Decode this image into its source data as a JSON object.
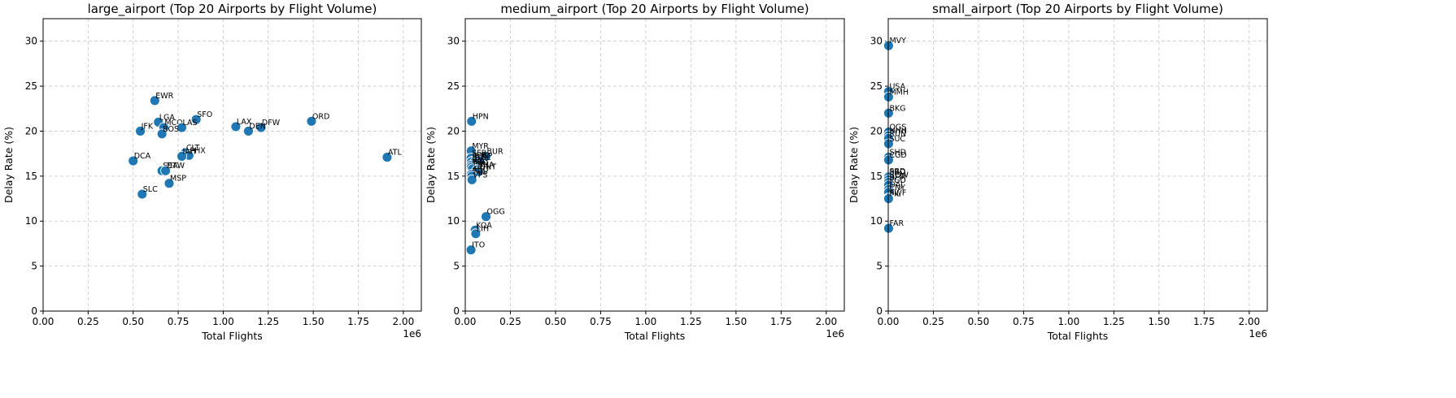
{
  "chart_data": [
    {
      "type": "scatter",
      "title": "large_airport (Top 20 Airports by Flight Volume)",
      "xlabel": "Total Flights",
      "ylabel": "Delay Rate (%)",
      "x_offset_label": "1e6",
      "xlim": [
        0,
        2.1
      ],
      "ylim": [
        0,
        32.5
      ],
      "xticks": [
        "0.00",
        "0.25",
        "0.50",
        "0.75",
        "1.00",
        "1.25",
        "1.50",
        "1.75",
        "2.00"
      ],
      "yticks": [
        "0",
        "5",
        "10",
        "15",
        "20",
        "25",
        "30"
      ],
      "grid": true,
      "points": [
        {
          "label": "EWR",
          "x": 0.62,
          "y": 23.4
        },
        {
          "label": "SFO",
          "x": 0.85,
          "y": 21.3
        },
        {
          "label": "ORD",
          "x": 1.49,
          "y": 21.1
        },
        {
          "label": "LGA",
          "x": 0.64,
          "y": 21.0
        },
        {
          "label": "LAX",
          "x": 1.07,
          "y": 20.5
        },
        {
          "label": "DFW",
          "x": 1.21,
          "y": 20.4
        },
        {
          "label": "MCO",
          "x": 0.67,
          "y": 20.4
        },
        {
          "label": "LAS",
          "x": 0.77,
          "y": 20.4
        },
        {
          "label": "JFK",
          "x": 0.54,
          "y": 20.0
        },
        {
          "label": "DEN",
          "x": 1.14,
          "y": 20.0
        },
        {
          "label": "BOS",
          "x": 0.66,
          "y": 19.7
        },
        {
          "label": "CLT",
          "x": 0.79,
          "y": 17.6
        },
        {
          "label": "PHX",
          "x": 0.81,
          "y": 17.3
        },
        {
          "label": "IAH",
          "x": 0.77,
          "y": 17.2
        },
        {
          "label": "ATL",
          "x": 1.91,
          "y": 17.1
        },
        {
          "label": "DCA",
          "x": 0.5,
          "y": 16.7
        },
        {
          "label": "SEA",
          "x": 0.66,
          "y": 15.6
        },
        {
          "label": "DTW",
          "x": 0.68,
          "y": 15.6
        },
        {
          "label": "MSP",
          "x": 0.7,
          "y": 14.2
        },
        {
          "label": "SLC",
          "x": 0.55,
          "y": 13.0
        }
      ]
    },
    {
      "type": "scatter",
      "title": "medium_airport (Top 20 Airports by Flight Volume)",
      "xlabel": "Total Flights",
      "ylabel": "Delay Rate (%)",
      "x_offset_label": "1e6",
      "xlim": [
        0,
        2.1
      ],
      "ylim": [
        0,
        32.5
      ],
      "xticks": [
        "0.00",
        "0.25",
        "0.50",
        "0.75",
        "1.00",
        "1.25",
        "1.50",
        "1.75",
        "2.00"
      ],
      "yticks": [
        "0",
        "5",
        "10",
        "15",
        "20",
        "25",
        "30"
      ],
      "grid": true,
      "points": [
        {
          "label": "HPN",
          "x": 0.035,
          "y": 21.1
        },
        {
          "label": "MYR",
          "x": 0.033,
          "y": 17.8
        },
        {
          "label": "BUR",
          "x": 0.115,
          "y": 17.2
        },
        {
          "label": "SFB",
          "x": 0.032,
          "y": 17.0
        },
        {
          "label": "PBI",
          "x": 0.045,
          "y": 16.7
        },
        {
          "label": "ISP",
          "x": 0.08,
          "y": 16.7
        },
        {
          "label": "ELP",
          "x": 0.034,
          "y": 16.6
        },
        {
          "label": "BDL",
          "x": 0.05,
          "y": 16.5
        },
        {
          "label": "RIC",
          "x": 0.032,
          "y": 16.2
        },
        {
          "label": "PVD",
          "x": 0.034,
          "y": 16.0
        },
        {
          "label": "PIE",
          "x": 0.04,
          "y": 15.8
        },
        {
          "label": "BNA",
          "x": 0.065,
          "y": 15.7
        },
        {
          "label": "ONT",
          "x": 0.075,
          "y": 15.5
        },
        {
          "label": "ABQ",
          "x": 0.033,
          "y": 15.2
        },
        {
          "label": "TUL",
          "x": 0.036,
          "y": 15.0
        },
        {
          "label": "VPS",
          "x": 0.037,
          "y": 14.6
        },
        {
          "label": "OGG",
          "x": 0.115,
          "y": 10.5
        },
        {
          "label": "KOA",
          "x": 0.055,
          "y": 9.0
        },
        {
          "label": "LIH",
          "x": 0.058,
          "y": 8.6
        },
        {
          "label": "ITO",
          "x": 0.032,
          "y": 6.8
        }
      ]
    },
    {
      "type": "scatter",
      "title": "small_airport (Top 20 Airports by Flight Volume)",
      "xlabel": "Total Flights",
      "ylabel": "Delay Rate (%)",
      "x_offset_label": "1e6",
      "xlim": [
        0,
        2.1
      ],
      "ylim": [
        0,
        32.5
      ],
      "xticks": [
        "0.00",
        "0.25",
        "0.50",
        "0.75",
        "1.00",
        "1.25",
        "1.50",
        "1.75",
        "2.00"
      ],
      "yticks": [
        "0",
        "5",
        "10",
        "15",
        "20",
        "25",
        "30"
      ],
      "grid": true,
      "points": [
        {
          "label": "MVY",
          "x": 0.002,
          "y": 29.5
        },
        {
          "label": "USA",
          "x": 0.002,
          "y": 24.4
        },
        {
          "label": "MMH",
          "x": 0.002,
          "y": 23.8
        },
        {
          "label": "BKG",
          "x": 0.002,
          "y": 22.0
        },
        {
          "label": "OGS",
          "x": 0.002,
          "y": 19.9
        },
        {
          "label": "HHH",
          "x": 0.002,
          "y": 19.5
        },
        {
          "label": "RUN",
          "x": 0.002,
          "y": 19.2
        },
        {
          "label": "SUC",
          "x": 0.002,
          "y": 18.6
        },
        {
          "label": "SHD",
          "x": 0.002,
          "y": 17.1
        },
        {
          "label": "CGD",
          "x": 0.002,
          "y": 16.8
        },
        {
          "label": "SBD",
          "x": 0.002,
          "y": 15.0
        },
        {
          "label": "PRO",
          "x": 0.002,
          "y": 14.9
        },
        {
          "label": "ROW",
          "x": 0.002,
          "y": 14.6
        },
        {
          "label": "BFM",
          "x": 0.002,
          "y": 14.3
        },
        {
          "label": "PGD",
          "x": 0.002,
          "y": 14.0
        },
        {
          "label": "OAJ",
          "x": 0.002,
          "y": 13.5
        },
        {
          "label": "CNY",
          "x": 0.002,
          "y": 13.2
        },
        {
          "label": "SWF",
          "x": 0.002,
          "y": 12.6
        },
        {
          "label": "PIL",
          "x": 0.002,
          "y": 12.5
        },
        {
          "label": "FAR",
          "x": 0.002,
          "y": 9.2
        }
      ]
    }
  ]
}
